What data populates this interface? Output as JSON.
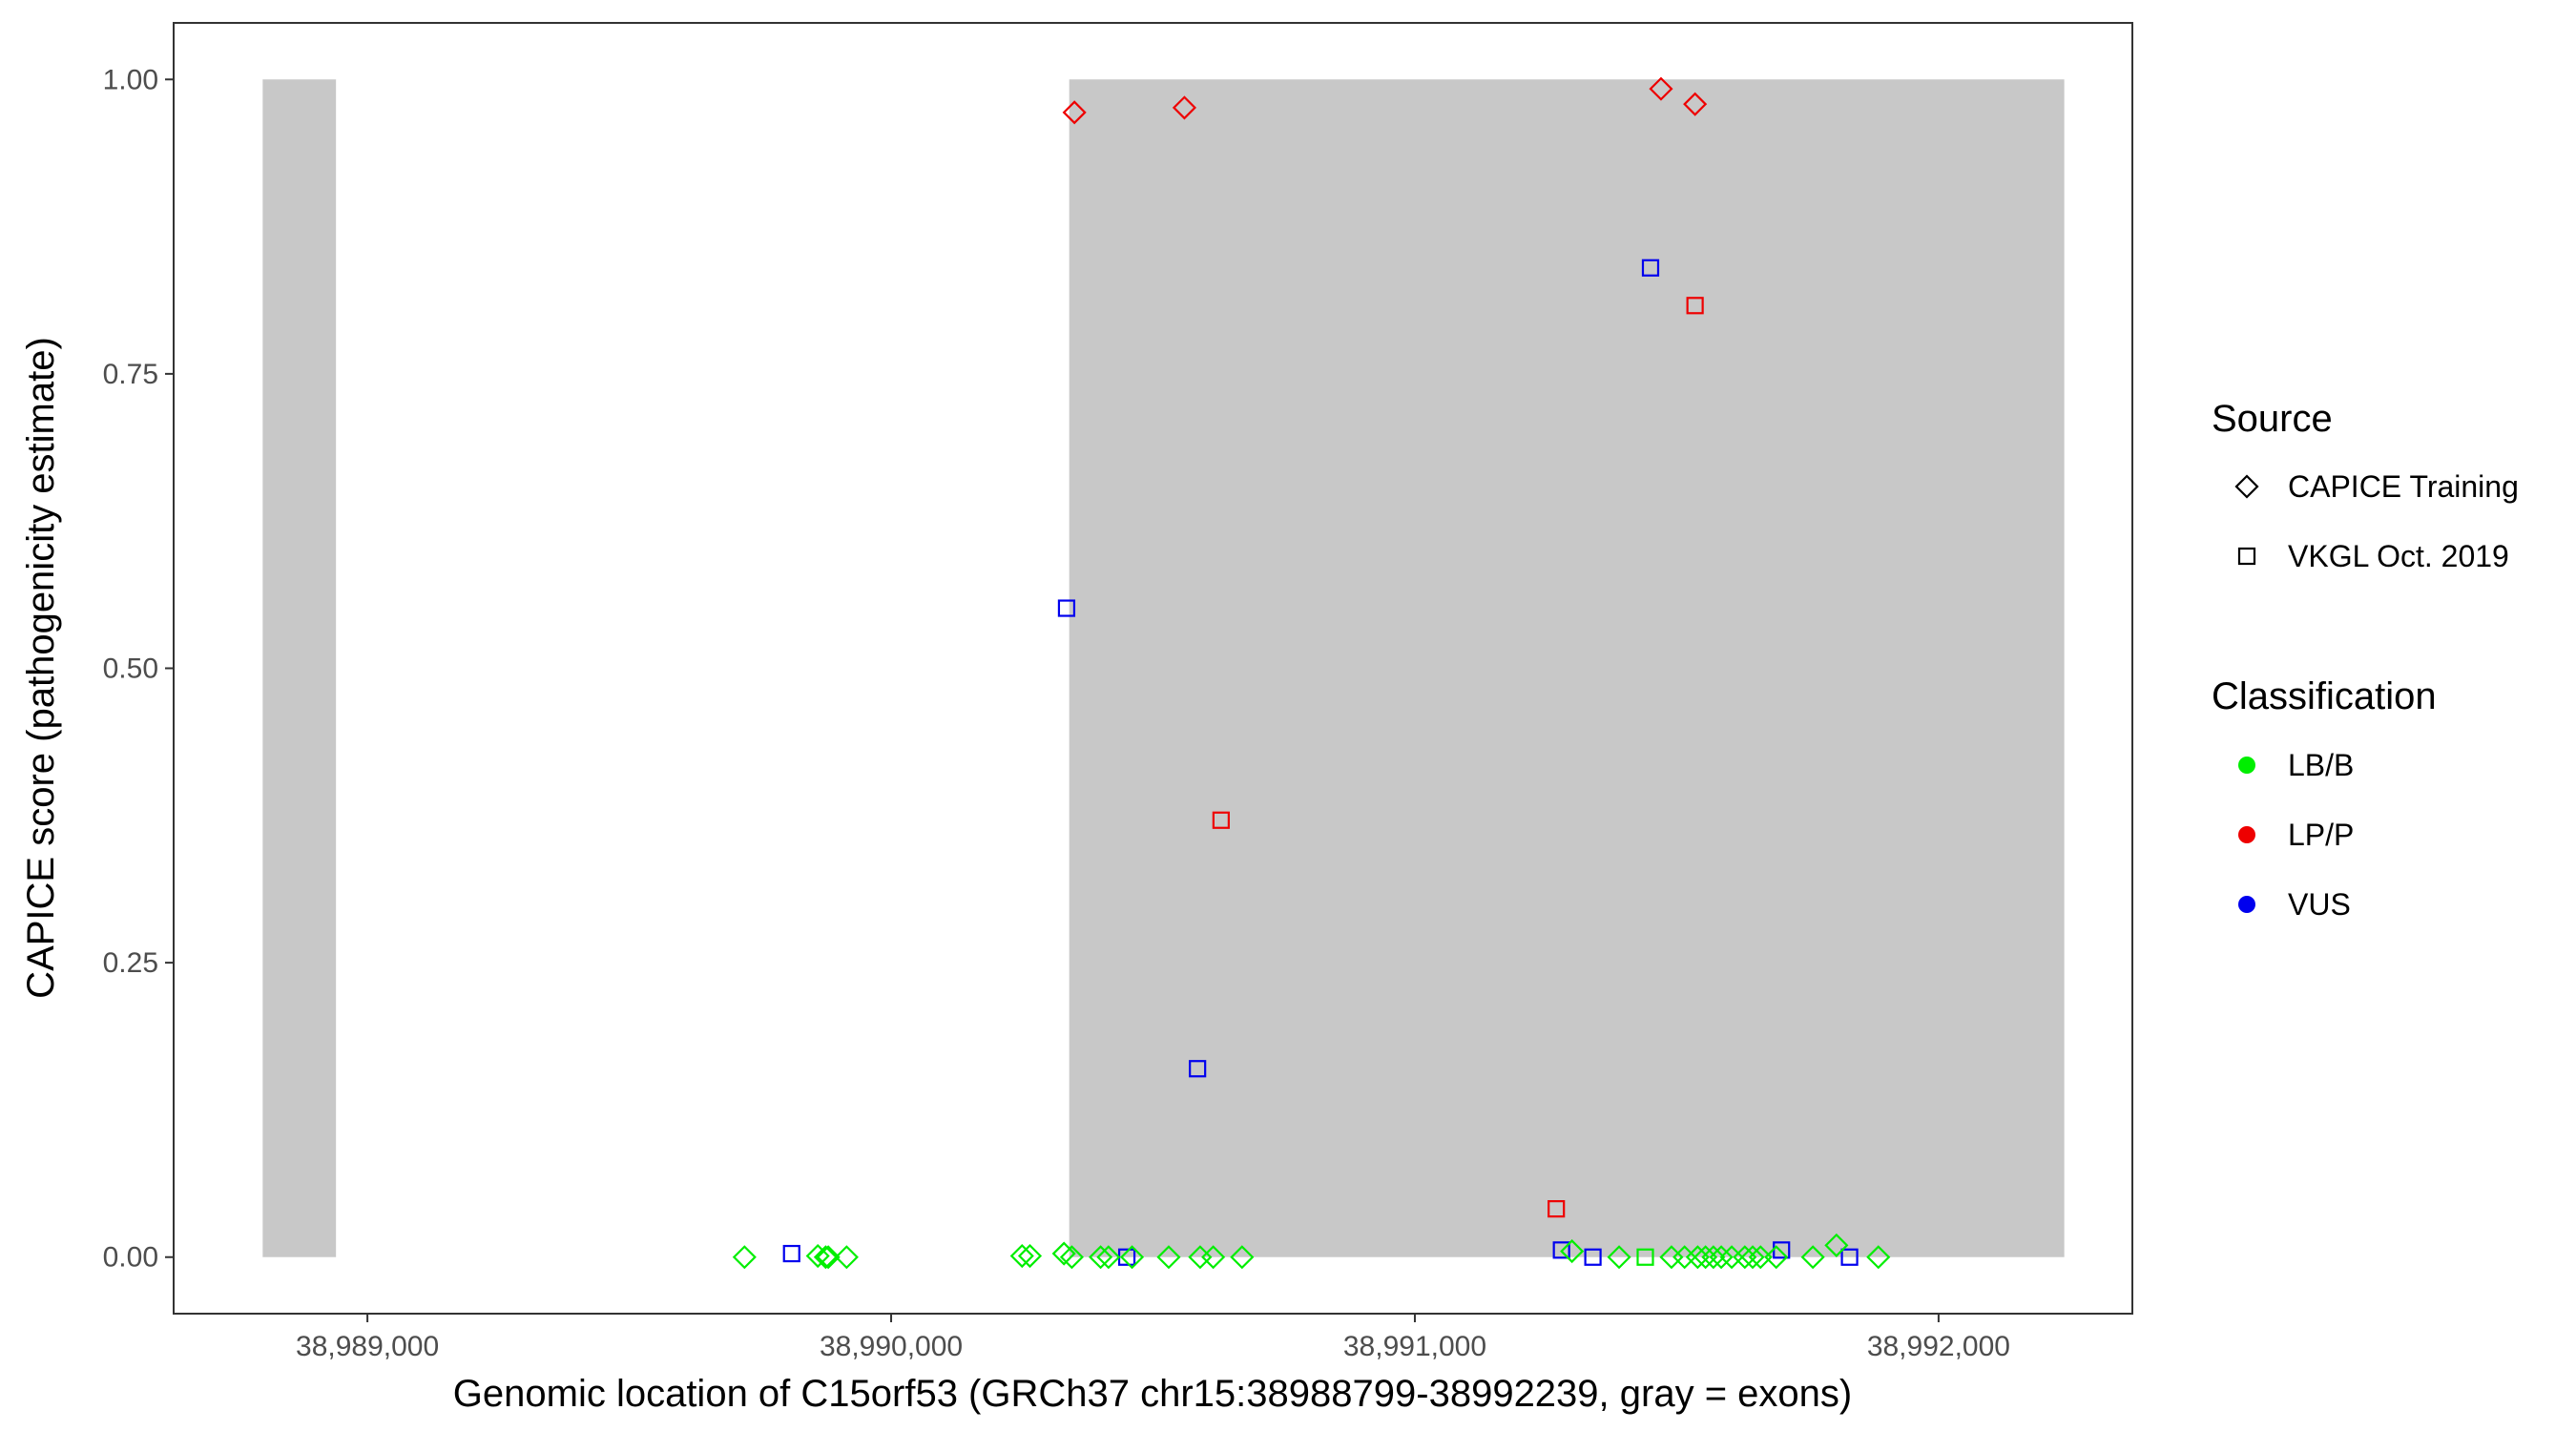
{
  "chart_data": {
    "type": "scatter",
    "xlabel": "Genomic location of C15orf53 (GRCh37 chr15:38988799-38992239, gray = exons)",
    "ylabel": "CAPICE score (pathogenicity estimate)",
    "xlim": [
      38988630,
      38992370
    ],
    "ylim": [
      -0.048,
      1.048
    ],
    "x_ticks": [
      38989000,
      38990000,
      38991000,
      38992000
    ],
    "x_tick_labels": [
      "38,989,000",
      "38,990,000",
      "38,991,000",
      "38,992,000"
    ],
    "y_ticks": [
      0,
      0.25,
      0.5,
      0.75,
      1.0
    ],
    "y_tick_labels": [
      "0.00",
      "0.25",
      "0.50",
      "0.75",
      "1.00"
    ],
    "grid": false,
    "exons": [
      {
        "start": 38988800,
        "end": 38988940
      },
      {
        "start": 38990340,
        "end": 38992240
      }
    ],
    "exon_color": "#c8c8c8",
    "legend_placement": "right",
    "legends": {
      "source": {
        "title": "Source",
        "entries": [
          {
            "label": "CAPICE Training",
            "shape": "diamond"
          },
          {
            "label": "VKGL Oct. 2019",
            "shape": "square"
          }
        ]
      },
      "classification": {
        "title": "Classification",
        "entries": [
          {
            "label": "LB/B",
            "color": "#00ee00"
          },
          {
            "label": "LP/P",
            "color": "#ee0000"
          },
          {
            "label": "VUS",
            "color": "#0000ee"
          }
        ]
      }
    },
    "colors": {
      "LB/B": "#00ee00",
      "LP/P": "#ee0000",
      "VUS": "#0000ee"
    },
    "points": [
      {
        "x": 38990350,
        "y": 0.972,
        "source": "CAPICE Training",
        "class": "LP/P"
      },
      {
        "x": 38990560,
        "y": 0.976,
        "source": "CAPICE Training",
        "class": "LP/P"
      },
      {
        "x": 38991470,
        "y": 0.992,
        "source": "CAPICE Training",
        "class": "LP/P"
      },
      {
        "x": 38991535,
        "y": 0.979,
        "source": "CAPICE Training",
        "class": "LP/P"
      },
      {
        "x": 38991450,
        "y": 0.84,
        "source": "VKGL Oct. 2019",
        "class": "VUS"
      },
      {
        "x": 38991535,
        "y": 0.808,
        "source": "VKGL Oct. 2019",
        "class": "LP/P"
      },
      {
        "x": 38990335,
        "y": 0.551,
        "source": "VKGL Oct. 2019",
        "class": "VUS"
      },
      {
        "x": 38990630,
        "y": 0.371,
        "source": "VKGL Oct. 2019",
        "class": "LP/P"
      },
      {
        "x": 38990585,
        "y": 0.16,
        "source": "VKGL Oct. 2019",
        "class": "VUS"
      },
      {
        "x": 38991270,
        "y": 0.041,
        "source": "VKGL Oct. 2019",
        "class": "LP/P"
      },
      {
        "x": 38989810,
        "y": 0.003,
        "source": "VKGL Oct. 2019",
        "class": "VUS"
      },
      {
        "x": 38990450,
        "y": 0.0,
        "source": "VKGL Oct. 2019",
        "class": "VUS"
      },
      {
        "x": 38991280,
        "y": 0.006,
        "source": "VKGL Oct. 2019",
        "class": "VUS"
      },
      {
        "x": 38991340,
        "y": 0.0,
        "source": "VKGL Oct. 2019",
        "class": "VUS"
      },
      {
        "x": 38991700,
        "y": 0.006,
        "source": "VKGL Oct. 2019",
        "class": "VUS"
      },
      {
        "x": 38991830,
        "y": 0.0,
        "source": "VKGL Oct. 2019",
        "class": "VUS"
      },
      {
        "x": 38991440,
        "y": 0.0,
        "source": "VKGL Oct. 2019",
        "class": "LB/B"
      },
      {
        "x": 38989720,
        "y": 0.0,
        "source": "CAPICE Training",
        "class": "LB/B"
      },
      {
        "x": 38989860,
        "y": 0.001,
        "source": "CAPICE Training",
        "class": "LB/B"
      },
      {
        "x": 38989875,
        "y": 0.0,
        "source": "CAPICE Training",
        "class": "LB/B"
      },
      {
        "x": 38989880,
        "y": 0.0,
        "source": "CAPICE Training",
        "class": "LB/B"
      },
      {
        "x": 38989915,
        "y": 0.0,
        "source": "CAPICE Training",
        "class": "LB/B"
      },
      {
        "x": 38990250,
        "y": 0.001,
        "source": "CAPICE Training",
        "class": "LB/B"
      },
      {
        "x": 38990265,
        "y": 0.001,
        "source": "CAPICE Training",
        "class": "LB/B"
      },
      {
        "x": 38990330,
        "y": 0.003,
        "source": "CAPICE Training",
        "class": "LB/B"
      },
      {
        "x": 38990345,
        "y": 0.0,
        "source": "CAPICE Training",
        "class": "LB/B"
      },
      {
        "x": 38990400,
        "y": 0.0,
        "source": "CAPICE Training",
        "class": "LB/B"
      },
      {
        "x": 38990415,
        "y": 0.0,
        "source": "CAPICE Training",
        "class": "LB/B"
      },
      {
        "x": 38990460,
        "y": 0.0,
        "source": "CAPICE Training",
        "class": "LB/B"
      },
      {
        "x": 38990530,
        "y": 0.0,
        "source": "CAPICE Training",
        "class": "LB/B"
      },
      {
        "x": 38990590,
        "y": 0.0,
        "source": "CAPICE Training",
        "class": "LB/B"
      },
      {
        "x": 38990615,
        "y": 0.0,
        "source": "CAPICE Training",
        "class": "LB/B"
      },
      {
        "x": 38990670,
        "y": 0.0,
        "source": "CAPICE Training",
        "class": "LB/B"
      },
      {
        "x": 38991300,
        "y": 0.005,
        "source": "CAPICE Training",
        "class": "LB/B"
      },
      {
        "x": 38991390,
        "y": 0.0,
        "source": "CAPICE Training",
        "class": "LB/B"
      },
      {
        "x": 38991490,
        "y": 0.0,
        "source": "CAPICE Training",
        "class": "LB/B"
      },
      {
        "x": 38991515,
        "y": 0.0,
        "source": "CAPICE Training",
        "class": "LB/B"
      },
      {
        "x": 38991540,
        "y": 0.0,
        "source": "CAPICE Training",
        "class": "LB/B"
      },
      {
        "x": 38991555,
        "y": 0.0,
        "source": "CAPICE Training",
        "class": "LB/B"
      },
      {
        "x": 38991570,
        "y": 0.0,
        "source": "CAPICE Training",
        "class": "LB/B"
      },
      {
        "x": 38991585,
        "y": 0.0,
        "source": "CAPICE Training",
        "class": "LB/B"
      },
      {
        "x": 38991605,
        "y": 0.0,
        "source": "CAPICE Training",
        "class": "LB/B"
      },
      {
        "x": 38991630,
        "y": 0.0,
        "source": "CAPICE Training",
        "class": "LB/B"
      },
      {
        "x": 38991645,
        "y": 0.0,
        "source": "CAPICE Training",
        "class": "LB/B"
      },
      {
        "x": 38991660,
        "y": 0.0,
        "source": "CAPICE Training",
        "class": "LB/B"
      },
      {
        "x": 38991690,
        "y": 0.0,
        "source": "CAPICE Training",
        "class": "LB/B"
      },
      {
        "x": 38991760,
        "y": 0.0,
        "source": "CAPICE Training",
        "class": "LB/B"
      },
      {
        "x": 38991805,
        "y": 0.01,
        "source": "CAPICE Training",
        "class": "LB/B"
      },
      {
        "x": 38991885,
        "y": 0.0,
        "source": "CAPICE Training",
        "class": "LB/B"
      }
    ]
  }
}
